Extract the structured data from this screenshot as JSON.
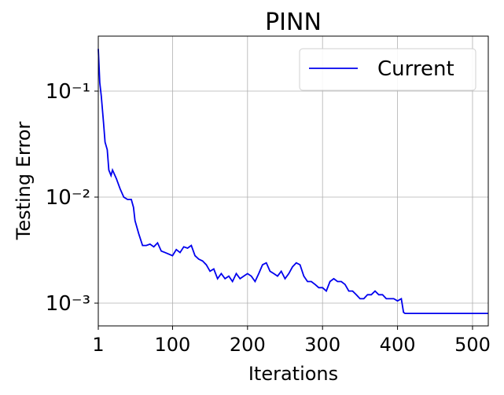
{
  "chart_data": {
    "type": "line",
    "title": "PINN",
    "xlabel": "Iterations",
    "ylabel": "Testing Error",
    "log_y": true,
    "grid": true,
    "legend_position": "upper right",
    "xlim": [
      1,
      521
    ],
    "ylim": [
      0.00061,
      0.33
    ],
    "xticks": [
      1,
      100,
      200,
      300,
      400,
      500
    ],
    "yticks": [
      {
        "value": 0.001,
        "label": "10⁻³"
      },
      {
        "value": 0.01,
        "label": "10⁻²"
      },
      {
        "value": 0.1,
        "label": "10⁻¹"
      }
    ],
    "x": [
      1,
      3,
      5,
      8,
      10,
      13,
      15,
      18,
      20,
      25,
      30,
      35,
      40,
      45,
      48,
      50,
      55,
      60,
      65,
      70,
      75,
      80,
      85,
      90,
      100,
      105,
      110,
      115,
      120,
      125,
      130,
      135,
      140,
      145,
      150,
      155,
      160,
      165,
      170,
      175,
      180,
      185,
      190,
      195,
      200,
      205,
      210,
      215,
      220,
      225,
      230,
      235,
      240,
      245,
      250,
      255,
      260,
      265,
      270,
      275,
      280,
      285,
      290,
      295,
      300,
      305,
      310,
      315,
      320,
      325,
      330,
      335,
      340,
      345,
      350,
      355,
      360,
      365,
      370,
      375,
      380,
      385,
      390,
      395,
      400,
      405,
      408,
      410,
      521
    ],
    "series": [
      {
        "name": "Current",
        "color": "#0000ee",
        "values": [
          0.25,
          0.12,
          0.09,
          0.05,
          0.033,
          0.028,
          0.018,
          0.016,
          0.018,
          0.015,
          0.012,
          0.01,
          0.0095,
          0.0095,
          0.008,
          0.006,
          0.0045,
          0.0035,
          0.0035,
          0.0036,
          0.0034,
          0.0037,
          0.0031,
          0.003,
          0.0028,
          0.0032,
          0.003,
          0.0034,
          0.0033,
          0.0035,
          0.0028,
          0.0026,
          0.0025,
          0.0023,
          0.002,
          0.0021,
          0.0017,
          0.0019,
          0.0017,
          0.0018,
          0.0016,
          0.0019,
          0.0017,
          0.0018,
          0.0019,
          0.0018,
          0.0016,
          0.0019,
          0.0023,
          0.0024,
          0.002,
          0.0019,
          0.0018,
          0.002,
          0.0017,
          0.0019,
          0.0022,
          0.0024,
          0.0023,
          0.0018,
          0.0016,
          0.0016,
          0.0015,
          0.0014,
          0.0014,
          0.0013,
          0.0016,
          0.0017,
          0.0016,
          0.0016,
          0.0015,
          0.0013,
          0.0013,
          0.0012,
          0.0011,
          0.0011,
          0.0012,
          0.0012,
          0.0013,
          0.0012,
          0.0012,
          0.0011,
          0.0011,
          0.0011,
          0.00105,
          0.0011,
          0.00082,
          0.0008,
          0.0008
        ]
      }
    ]
  }
}
